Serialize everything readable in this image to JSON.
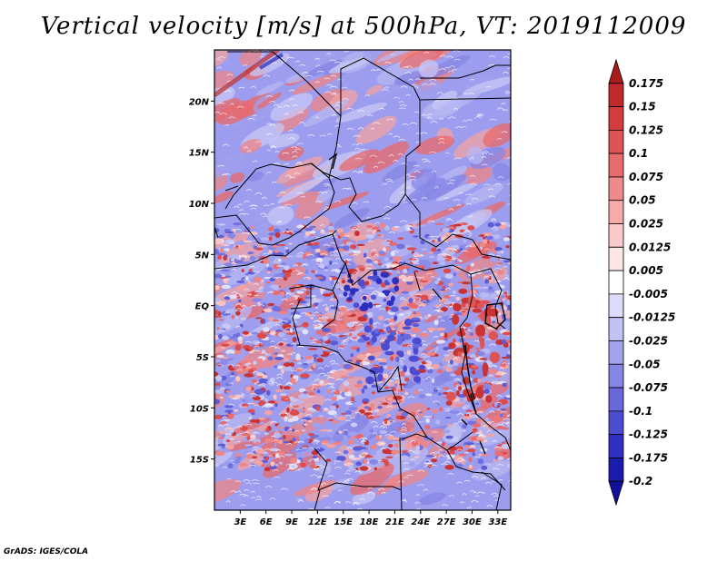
{
  "title": "Vertical velocity [m/s] at 500hPa, VT: 2019112009",
  "credit": "GrADS: IGES/COLA",
  "map": {
    "lat_labels": [
      "20N",
      "15N",
      "10N",
      "5N",
      "EQ",
      "5S",
      "10S",
      "15S"
    ],
    "lat_values": [
      20,
      15,
      10,
      5,
      0,
      -5,
      -10,
      -15
    ],
    "lon_labels": [
      "3E",
      "6E",
      "9E",
      "12E",
      "15E",
      "18E",
      "21E",
      "24E",
      "27E",
      "30E",
      "33E"
    ],
    "lon_values": [
      3,
      6,
      9,
      12,
      15,
      18,
      21,
      24,
      27,
      30,
      33
    ],
    "lon_range": [
      0,
      34.5
    ],
    "lat_range": [
      -20,
      25
    ],
    "field_colors": {
      "positive": "#e2484a",
      "negative": "#5a5ad8",
      "neutral": "#ffffff"
    }
  },
  "colorbar": {
    "levels": [
      "0.175",
      "0.15",
      "0.125",
      "0.1",
      "0.075",
      "0.05",
      "0.025",
      "0.0125",
      "0.005",
      "-0.005",
      "-0.0125",
      "-0.025",
      "-0.05",
      "-0.075",
      "-0.1",
      "-0.125",
      "-0.175",
      "-0.2"
    ],
    "colors": [
      "#a81c1c",
      "#c02a2a",
      "#d23c3c",
      "#de5454",
      "#e86c6c",
      "#ef8a8a",
      "#f6aaaa",
      "#fbcaca",
      "#fde6e6",
      "#ffffff",
      "#dcdcfa",
      "#c2c2f4",
      "#a4a4ee",
      "#8686e6",
      "#6868dc",
      "#4c4cd2",
      "#3030c0",
      "#1c1cac",
      "#10109a"
    ]
  }
}
